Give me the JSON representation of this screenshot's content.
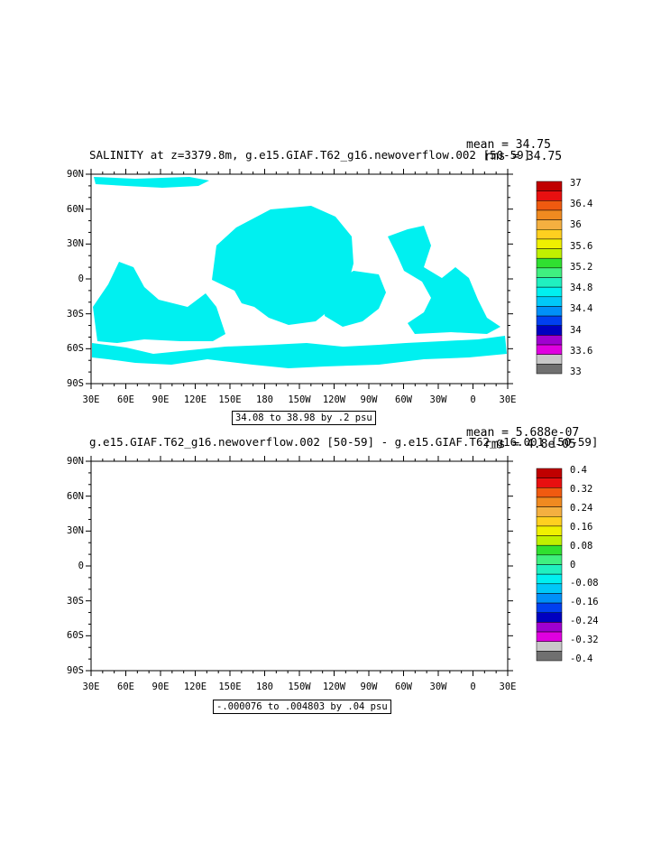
{
  "panels": [
    {
      "title": "SALINITY at z=3379.8m, g.e15.GIAF.T62_g16.newoverflow.002 [50-59]",
      "mean": "mean = 34.75",
      "rms": "rms = 34.75",
      "contour_info": "34.08 to 38.98 by .2 psu",
      "lat_labels": [
        "90N",
        "60N",
        "30N",
        "0",
        "30S",
        "60S",
        "90S"
      ],
      "lon_labels": [
        "30E",
        "60E",
        "90E",
        "120E",
        "150E",
        "180",
        "150W",
        "120W",
        "90W",
        "60W",
        "30W",
        "0",
        "30E"
      ],
      "legend_labels": [
        "37",
        "36.4",
        "36",
        "35.6",
        "35.2",
        "34.8",
        "34.4",
        "34",
        "33.6",
        "33"
      ],
      "legend_colors": [
        "#c00000",
        "#e81010",
        "#f05a10",
        "#f08a20",
        "#f4b040",
        "#ffd020",
        "#f0f000",
        "#c0f000",
        "#30e030",
        "#40f080",
        "#20f0c0",
        "#00f0f0",
        "#00c8f8",
        "#0090f8",
        "#0040f0",
        "#0000c0",
        "#a000d0",
        "#e000e0",
        "#c8c8c8",
        "#707070"
      ],
      "fill_color": "#00f0f0"
    },
    {
      "title": "g.e15.GIAF.T62_g16.newoverflow.002 [50-59] - g.e15.GIAF.T62_g16.001 [50-59]",
      "mean": "mean = 5.688e-07",
      "rms": "rms = 4.8e-05",
      "contour_info": "-.000076 to .004803 by .04 psu",
      "lat_labels": [
        "90N",
        "60N",
        "30N",
        "0",
        "30S",
        "60S",
        "90S"
      ],
      "lon_labels": [
        "30E",
        "60E",
        "90E",
        "120E",
        "150E",
        "180",
        "150W",
        "120W",
        "90W",
        "60W",
        "30W",
        "0",
        "30E"
      ],
      "legend_labels": [
        "0.4",
        "0.32",
        "0.24",
        "0.16",
        "0.08",
        "0",
        "-0.08",
        "-0.16",
        "-0.24",
        "-0.32",
        "-0.4"
      ],
      "legend_colors": [
        "#c00000",
        "#e81010",
        "#f05a10",
        "#f08a20",
        "#f4b040",
        "#ffd020",
        "#f0f000",
        "#c0f000",
        "#30e030",
        "#40f080",
        "#20f0c0",
        "#00f0f0",
        "#00c8f8",
        "#0090f8",
        "#0040f0",
        "#0000c0",
        "#a000d0",
        "#e000e0",
        "#c8c8c8",
        "#707070"
      ],
      "fill_color": "#30f070"
    }
  ]
}
